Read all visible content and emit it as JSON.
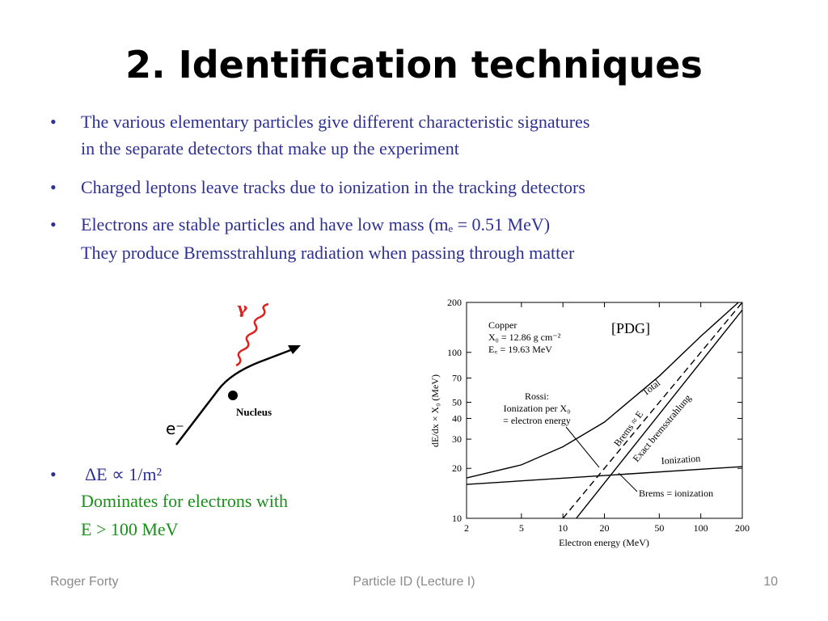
{
  "title": "2.  Identification techniques",
  "bullets": [
    [
      "The various elementary particles give different characteristic signatures",
      "in the separate detectors that make up the experiment"
    ],
    [
      "Charged leptons leave tracks due to ionization in the tracking detectors"
    ],
    [
      "Electrons are stable particles and have low mass  (mₑ = 0.51 MeV)",
      "They produce Bremsstrahlung radiation when passing through matter"
    ],
    [
      "ΔE ∝ 1/m²",
      "Dominates for electrons with",
      "E > 100 MeV"
    ]
  ],
  "diagram": {
    "photon": "γ",
    "electron": "e⁻",
    "nucleus": "Nucleus"
  },
  "footer": {
    "author": "Roger Forty",
    "course": "Particle ID  (Lecture I)",
    "page": "10"
  },
  "chart_data": {
    "type": "line",
    "x_label": "Electron energy (MeV)",
    "y_label": "dE/dx × X₀ (MeV)",
    "annotations": [
      "Copper",
      "X₀ = 12.86 g cm⁻²",
      "E꜀ = 19.63 MeV",
      "[PDG]",
      "Rossi:",
      "Ionization per X₀",
      "= electron energy",
      "Brems = ionization"
    ],
    "log_x": true,
    "log_y": true,
    "xlim": [
      2,
      200
    ],
    "ylim": [
      10,
      200
    ],
    "xticks": [
      2,
      5,
      10,
      20,
      50,
      100,
      200
    ],
    "yticks": [
      10,
      20,
      30,
      40,
      50,
      70,
      100,
      200
    ],
    "series": [
      {
        "name": "Total",
        "color": "#000000",
        "dashed": false,
        "x": [
          2,
          5,
          10,
          20,
          50,
          100,
          200
        ],
        "values": [
          17.5,
          21,
          27,
          38,
          72,
          125,
          210
        ]
      },
      {
        "name": "Ionization",
        "color": "#000000",
        "dashed": false,
        "x": [
          2,
          200
        ],
        "values": [
          16,
          20.5
        ]
      },
      {
        "name": "Brems ≈ E",
        "color": "#000000",
        "dashed": true,
        "x": [
          10,
          200
        ],
        "values": [
          10,
          200
        ]
      },
      {
        "name": "Exact bremsstrahlung",
        "color": "#000000",
        "dashed": false,
        "x": [
          12.5,
          200
        ],
        "values": [
          10,
          180
        ]
      }
    ]
  }
}
